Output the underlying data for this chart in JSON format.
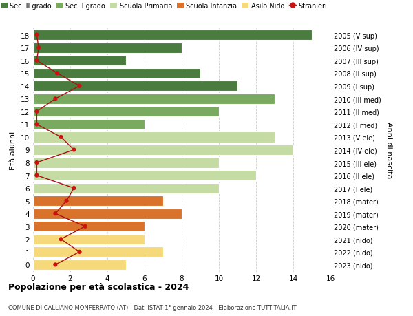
{
  "ages": [
    18,
    17,
    16,
    15,
    14,
    13,
    12,
    11,
    10,
    9,
    8,
    7,
    6,
    5,
    4,
    3,
    2,
    1,
    0
  ],
  "years": [
    "2005 (V sup)",
    "2006 (IV sup)",
    "2007 (III sup)",
    "2008 (II sup)",
    "2009 (I sup)",
    "2010 (III med)",
    "2011 (II med)",
    "2012 (I med)",
    "2013 (V ele)",
    "2014 (IV ele)",
    "2015 (III ele)",
    "2016 (II ele)",
    "2017 (I ele)",
    "2018 (mater)",
    "2019 (mater)",
    "2020 (mater)",
    "2021 (nido)",
    "2022 (nido)",
    "2023 (nido)"
  ],
  "bar_values": [
    15,
    8,
    5,
    9,
    11,
    13,
    10,
    6,
    13,
    14,
    10,
    12,
    10,
    7,
    8,
    6,
    6,
    7,
    5
  ],
  "bar_colors": [
    "#4a7c3f",
    "#4a7c3f",
    "#4a7c3f",
    "#4a7c3f",
    "#4a7c3f",
    "#7aaa5f",
    "#7aaa5f",
    "#7aaa5f",
    "#c5dba4",
    "#c5dba4",
    "#c5dba4",
    "#c5dba4",
    "#c5dba4",
    "#d9722a",
    "#d9722a",
    "#d9722a",
    "#f5d97a",
    "#f5d97a",
    "#f5d97a"
  ],
  "stranieri_values": [
    0.2,
    0.3,
    0.2,
    1.3,
    2.5,
    1.2,
    0.2,
    0.2,
    1.5,
    2.2,
    0.2,
    0.2,
    2.2,
    1.8,
    1.2,
    2.8,
    1.5,
    2.5,
    1.2
  ],
  "legend_labels": [
    "Sec. II grado",
    "Sec. I grado",
    "Scuola Primaria",
    "Scuola Infanzia",
    "Asilo Nido",
    "Stranieri"
  ],
  "legend_colors": [
    "#4a7c3f",
    "#7aaa5f",
    "#c5dba4",
    "#d9722a",
    "#f5d97a",
    "#cc1111"
  ],
  "ylabel_left": "Età alunni",
  "ylabel_right": "Anni di nascita",
  "xlim": [
    0,
    16
  ],
  "xticks": [
    0,
    2,
    4,
    6,
    8,
    10,
    12,
    14,
    16
  ],
  "title": "Popolazione per età scolastica - 2024",
  "subtitle": "COMUNE DI CALLIANO MONFERRATO (AT) - Dati ISTAT 1° gennaio 2024 - Elaborazione TUTTITALIA.IT",
  "bg_color": "#ffffff",
  "grid_color": "#cccccc",
  "bar_height": 0.82
}
